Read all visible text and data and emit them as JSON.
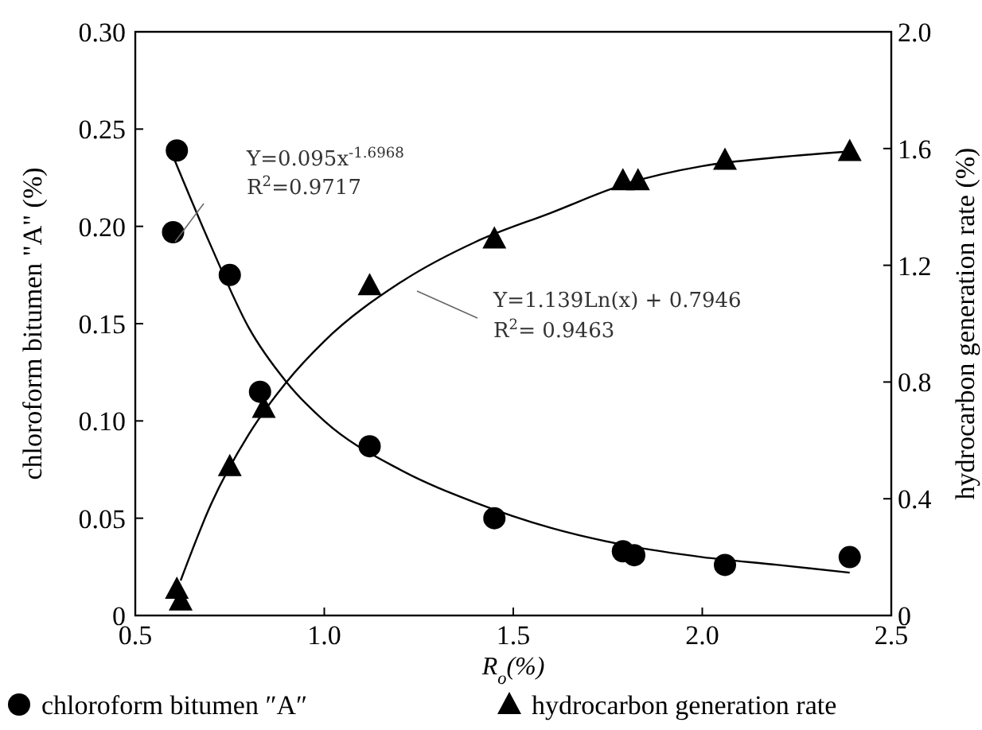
{
  "chart_data": {
    "type": "scatter",
    "xlabel": "R$_{o}$(%)",
    "ylabel": "chloroform bitumen \"A\" (%)",
    "y2label": "hydrocarbon generation rate (%)",
    "xlim": [
      0.5,
      2.5
    ],
    "xticks": [
      {
        "value": 0.5,
        "label": "0.5"
      },
      {
        "value": 1,
        "label": "1.0"
      },
      {
        "value": 1.5,
        "label": "1.5"
      },
      {
        "value": 2,
        "label": "2.0"
      },
      {
        "value": 2.5,
        "label": "2.5"
      }
    ],
    "ylim": [
      0,
      0.3
    ],
    "yticks": [
      {
        "value": 0,
        "label": "0"
      },
      {
        "value": 0.05,
        "label": "0.05"
      },
      {
        "value": 0.1,
        "label": "0.10"
      },
      {
        "value": 0.15,
        "label": "0.15"
      },
      {
        "value": 0.2,
        "label": "0.20"
      },
      {
        "value": 0.25,
        "label": "0.25"
      },
      {
        "value": 0.3,
        "label": "0.30"
      }
    ],
    "y2lim": [
      0,
      2
    ],
    "y2ticks": [
      0,
      0.4,
      0.8,
      1.2,
      1.6,
      {
        "value": 2,
        "label": "2.0"
      }
    ],
    "grid": false,
    "legend": "bottom",
    "series": [
      {
        "name": "chloroform bitumen ″A″",
        "color": "#000000",
        "marker": "circle",
        "x": [
          0.61,
          0.6,
          0.75,
          0.83,
          1.12,
          1.45,
          1.79,
          1.82,
          2.06,
          2.39
        ],
        "values": [
          0.239,
          0.197,
          0.175,
          0.115,
          0.087,
          0.05,
          0.033,
          0.031,
          0.026,
          0.03
        ]
      },
      {
        "name": "hydrocarbon generation rate",
        "color": "#000000",
        "marker": "triangle",
        "axis": "y2",
        "x": [
          0.61,
          0.62,
          0.75,
          0.84,
          1.12,
          1.45,
          1.79,
          1.83,
          2.06,
          2.39
        ],
        "values": [
          0.09,
          0.05,
          0.51,
          0.71,
          1.13,
          1.29,
          1.49,
          1.49,
          1.56,
          1.59
        ]
      },
      {
        "type": "line",
        "color": "#000000",
        "marker": "none",
        "x": [
          0.6,
          0.7,
          0.8,
          0.9,
          1.0,
          1.2,
          1.4,
          1.6,
          1.8,
          2.0,
          2.2,
          2.39
        ],
        "values": [
          0.236,
          0.19,
          0.148,
          0.12,
          0.1,
          0.075,
          0.058,
          0.045,
          0.036,
          0.03,
          0.026,
          0.022
        ]
      },
      {
        "type": "line",
        "color": "#000000",
        "marker": "none",
        "axis": "y2",
        "x": [
          0.62,
          0.7,
          0.8,
          0.9,
          1.0,
          1.2,
          1.4,
          1.6,
          1.8,
          2.0,
          2.2,
          2.39
        ],
        "values": [
          0.12,
          0.38,
          0.62,
          0.8,
          0.94,
          1.14,
          1.28,
          1.38,
          1.48,
          1.54,
          1.57,
          1.59
        ]
      }
    ],
    "annotations": [
      "Y=0.095x$^{-1.6968}$",
      "R$^{2}$=0.9717",
      "Y=1.139Ln(x) + 0.7946",
      "R$^{2}$= 0.9463"
    ]
  }
}
